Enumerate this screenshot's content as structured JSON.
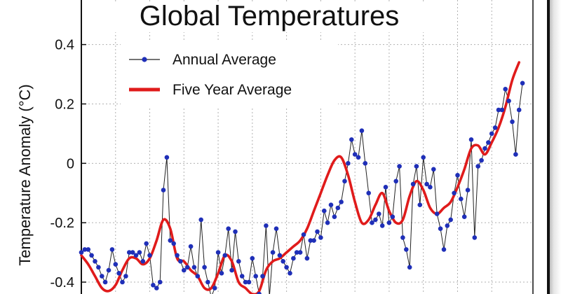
{
  "chart_data": {
    "type": "line",
    "title": "Global Temperatures",
    "xlabel": "",
    "ylabel": "Temperature Anomaly (°C)",
    "ylim": [
      -0.44,
      0.55
    ],
    "xlim": [
      1880,
      2010
    ],
    "yticks": [
      0.4,
      0.2,
      0,
      -0.2,
      -0.4
    ],
    "ytick_labels": [
      "0.4",
      "0.2",
      "0",
      "-0.2",
      "-0.4"
    ],
    "grid": true,
    "legend_position": "top-left",
    "colors": {
      "annual": "#1f2fb8",
      "annual_line": "#222222",
      "five_year": "#e01b1b",
      "grid": "#b0b0b0"
    },
    "series": [
      {
        "name": "Annual Average",
        "x": [
          1880,
          1881,
          1882,
          1883,
          1884,
          1885,
          1886,
          1887,
          1888,
          1889,
          1890,
          1891,
          1892,
          1893,
          1894,
          1895,
          1896,
          1897,
          1898,
          1899,
          1900,
          1901,
          1902,
          1903,
          1904,
          1905,
          1906,
          1907,
          1908,
          1909,
          1910,
          1911,
          1912,
          1913,
          1914,
          1915,
          1916,
          1917,
          1918,
          1919,
          1920,
          1921,
          1922,
          1923,
          1924,
          1925,
          1926,
          1927,
          1928,
          1929,
          1930,
          1931,
          1932,
          1933,
          1934,
          1935,
          1936,
          1937,
          1938,
          1939,
          1940,
          1941,
          1942,
          1943,
          1944,
          1945,
          1946,
          1947,
          1948,
          1949,
          1950,
          1951,
          1952,
          1953,
          1954,
          1955,
          1956,
          1957,
          1958,
          1959,
          1960,
          1961,
          1962,
          1963,
          1964,
          1965,
          1966,
          1967,
          1968,
          1969,
          1970,
          1971,
          1972,
          1973,
          1974,
          1975,
          1976,
          1977,
          1978,
          1979,
          1980,
          1981,
          1982,
          1983,
          1984,
          1985,
          1986,
          1987,
          1988,
          1989,
          1990,
          1991,
          1992,
          1993,
          1994,
          1995,
          1996,
          1997,
          1998,
          1999,
          2000,
          2001,
          2002,
          2003,
          2004,
          2005,
          2006,
          2007,
          2008,
          2009
        ],
        "values": [
          -0.3,
          -0.29,
          -0.29,
          -0.31,
          -0.33,
          -0.35,
          -0.38,
          -0.4,
          -0.36,
          -0.29,
          -0.34,
          -0.37,
          -0.4,
          -0.38,
          -0.3,
          -0.3,
          -0.31,
          -0.3,
          -0.33,
          -0.27,
          -0.31,
          -0.41,
          -0.42,
          -0.4,
          -0.09,
          0.02,
          -0.26,
          -0.27,
          -0.31,
          -0.33,
          -0.36,
          -0.35,
          -0.28,
          -0.35,
          -0.38,
          -0.19,
          -0.35,
          -0.4,
          -0.45,
          -0.42,
          -0.3,
          -0.37,
          -0.31,
          -0.22,
          -0.36,
          -0.23,
          -0.33,
          -0.38,
          -0.4,
          -0.4,
          -0.32,
          -0.38,
          -0.44,
          -0.38,
          -0.21,
          -0.45,
          -0.3,
          -0.22,
          -0.31,
          -0.33,
          -0.35,
          -0.37,
          -0.32,
          -0.3,
          -0.3,
          -0.24,
          -0.32,
          -0.26,
          -0.26,
          -0.23,
          -0.25,
          -0.16,
          -0.2,
          -0.14,
          -0.18,
          -0.15,
          -0.13,
          -0.06,
          0.0,
          0.08,
          0.03,
          0.02,
          0.11,
          0.0,
          -0.1,
          -0.2,
          -0.19,
          -0.17,
          -0.21,
          -0.08,
          -0.2,
          -0.18,
          -0.06,
          -0.01,
          -0.25,
          -0.29,
          -0.35,
          -0.07,
          -0.01,
          -0.14,
          0.02,
          -0.07,
          -0.08,
          -0.02,
          -0.17,
          -0.22,
          -0.29,
          -0.21,
          -0.19,
          -0.1,
          -0.04,
          -0.12,
          -0.18,
          -0.09,
          0.08,
          -0.25,
          -0.01,
          0.01,
          0.05,
          0.07,
          0.1,
          0.12,
          0.18,
          0.18,
          0.25,
          0.21,
          0.14,
          0.03,
          0.18,
          0.27
        ]
      },
      {
        "name": "Five Year Average",
        "x": [
          1880,
          1882,
          1884,
          1886,
          1888,
          1890,
          1892,
          1894,
          1896,
          1898,
          1900,
          1902,
          1904,
          1906,
          1908,
          1910,
          1912,
          1914,
          1916,
          1918,
          1920,
          1922,
          1924,
          1926,
          1928,
          1930,
          1932,
          1934,
          1936,
          1938,
          1940,
          1942,
          1944,
          1946,
          1948,
          1950,
          1952,
          1954,
          1956,
          1958,
          1960,
          1962,
          1964,
          1966,
          1968,
          1970,
          1972,
          1974,
          1976,
          1978,
          1980,
          1982,
          1984,
          1986,
          1988,
          1990,
          1992,
          1994,
          1996,
          1998,
          2000,
          2002,
          2004,
          2006,
          2008
        ],
        "values": [
          -0.31,
          -0.34,
          -0.38,
          -0.42,
          -0.43,
          -0.41,
          -0.36,
          -0.32,
          -0.32,
          -0.34,
          -0.32,
          -0.26,
          -0.19,
          -0.22,
          -0.32,
          -0.33,
          -0.36,
          -0.38,
          -0.42,
          -0.42,
          -0.37,
          -0.31,
          -0.33,
          -0.4,
          -0.42,
          -0.44,
          -0.43,
          -0.36,
          -0.33,
          -0.32,
          -0.3,
          -0.28,
          -0.26,
          -0.22,
          -0.16,
          -0.1,
          -0.04,
          0.01,
          0.02,
          -0.04,
          -0.13,
          -0.2,
          -0.19,
          -0.14,
          -0.1,
          -0.16,
          -0.2,
          -0.19,
          -0.11,
          -0.06,
          -0.09,
          -0.15,
          -0.17,
          -0.15,
          -0.13,
          -0.08,
          -0.02,
          0.05,
          0.06,
          0.03,
          0.07,
          0.12,
          0.19,
          0.28,
          0.34
        ]
      }
    ]
  }
}
